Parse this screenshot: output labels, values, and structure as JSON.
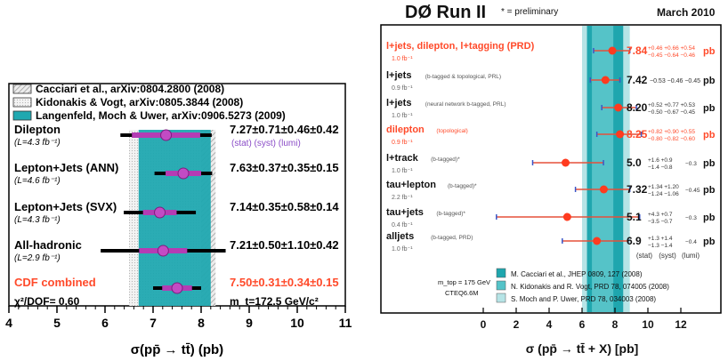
{
  "chart_data": [
    {
      "type": "scatter",
      "xlabel": "σ(pp̄ → tt̄) (pb)",
      "xlim": [
        4,
        11
      ],
      "x_ticks": [
        "4",
        "5",
        "6",
        "7",
        "8",
        "9",
        "10",
        "11"
      ],
      "legend": [
        {
          "label": "Cacciari et al., arXiv:0804.2800 (2008)",
          "color": "#c8c8c8",
          "style": "hatched"
        },
        {
          "label": "Kidonakis & Vogt, arXiv:0805.3844 (2008)",
          "color": "#e6e6e6",
          "style": "dotted"
        },
        {
          "label": "Langenfeld, Moch & Uwer, arXiv:0906.5273 (2009)",
          "color": "#20a8b0",
          "style": "solid"
        }
      ],
      "theory_bands": [
        {
          "name": "Cacciari et al.",
          "lo": 6.5,
          "hi": 8.3
        },
        {
          "name": "Kidonakis & Vogt",
          "lo": 6.5,
          "hi": 8.0
        },
        {
          "name": "Langenfeld, Moch & Uwer",
          "lo": 6.7,
          "hi": 8.2
        }
      ],
      "points": [
        {
          "name": "Dilepton",
          "lumi": "(L=4.3 fb⁻¹)",
          "value": 7.27,
          "stat_err": 0.71,
          "tot_err": 0.95,
          "result": "7.27±0.71±0.46±0.42",
          "extra": "(stat) (syst) (lumi)",
          "highlight": false
        },
        {
          "name": "Lepton+Jets (ANN)",
          "lumi": "(L=4.6 fb⁻¹)",
          "value": 7.63,
          "stat_err": 0.37,
          "tot_err": 0.6,
          "result": "7.63±0.37±0.35±0.15",
          "extra": "",
          "highlight": false
        },
        {
          "name": "Lepton+Jets (SVX)",
          "lumi": "(L=4.3 fb⁻¹)",
          "value": 7.14,
          "stat_err": 0.35,
          "tot_err": 0.75,
          "result": "7.14±0.35±0.58±0.14",
          "extra": "",
          "highlight": false
        },
        {
          "name": "All-hadronic",
          "lumi": "(L=2.9 fb⁻¹)",
          "value": 7.21,
          "stat_err": 0.5,
          "tot_err": 1.3,
          "result": "7.21±0.50±1.10±0.42",
          "extra": "",
          "highlight": false
        },
        {
          "name": "CDF combined",
          "lumi": "",
          "value": 7.5,
          "stat_err": 0.31,
          "tot_err": 0.5,
          "result": "7.50±0.31±0.34±0.15",
          "extra": "",
          "highlight": true
        }
      ],
      "chi2": "χ²/DOF= 0.60",
      "mass_note": "m_t=172.5 GeV/c²"
    },
    {
      "type": "scatter",
      "title": "DØ Run II",
      "title_note": "* = preliminary",
      "date": "March 2010",
      "xlabel": "σ (pp̄ → tt̄ + X) [pb]",
      "xlim": [
        -2,
        14
      ],
      "x_ticks": [
        "0",
        "2",
        "4",
        "6",
        "8",
        "10",
        "12"
      ],
      "theory_bands": [
        {
          "name": "M. Cacciari et al.",
          "lo": 6.3,
          "hi": 8.5,
          "color": "#1fa6ae"
        },
        {
          "name": "N. Kidonakis and R. Vogt",
          "lo": 6.6,
          "hi": 7.9,
          "color": "#55c3c8"
        },
        {
          "name": "S. Moch and P. Uwer",
          "lo": 6.0,
          "hi": 8.9,
          "color": "#b6e4e6"
        }
      ],
      "legend": [
        {
          "label": "M. Cacciari et al., JHEP 0809, 127 (2008)",
          "color": "#1fa6ae"
        },
        {
          "label": "N. Kidonakis and R. Vogt, PRD 78, 074005 (2008)",
          "color": "#55c3c8"
        },
        {
          "label": "S. Moch and P. Uwer, PRD 78, 034003 (2008)",
          "color": "#b6e4e6"
        }
      ],
      "legend_side": [
        "m_top = 175 GeV",
        "CTEQ6.6M"
      ],
      "error_header": [
        "(stat)",
        "(syst)",
        "(lumi)"
      ],
      "points": [
        {
          "name": "l+jets, dilepton, l+tagging (PRD)",
          "sub": "1.0 fb⁻¹",
          "value": 7.84,
          "lo": 6.7,
          "hi": 8.9,
          "val_text": "7.84",
          "err_up": "+0.46 +0.66 +0.54",
          "err_dn": "−0.45 −0.64 −0.46",
          "highlight": true
        },
        {
          "name": "l+jets",
          "tag": "(b-tagged & topological, PRL)",
          "sub": "0.9 fb⁻¹",
          "value": 7.42,
          "lo": 6.5,
          "hi": 8.3,
          "val_text": "7.42",
          "err_sym": "−0.53 −0.46 −0.45",
          "highlight": false
        },
        {
          "name": "l+jets",
          "tag": "(neural network b-tagged, PRL)",
          "sub": "1.0 fb⁻¹",
          "value": 8.2,
          "lo": 7.2,
          "hi": 9.3,
          "val_text": "8.20",
          "err_up": "+0.52 +0.77 +0.53",
          "err_dn": "−0.50 −0.67 −0.45",
          "highlight": false
        },
        {
          "name": "dilepton",
          "tag": "(topological)",
          "sub": "0.9 fb⁻¹",
          "value": 8.3,
          "lo": 6.9,
          "hi": 9.6,
          "val_text": "8.25",
          "err_up": "+0.82 +0.90 +0.55",
          "err_dn": "−0.80 −0.82 −0.60",
          "highlight": true
        },
        {
          "name": "l+track",
          "tag": "(b-tagged)*",
          "sub": "1.0 fb⁻¹",
          "value": 5.0,
          "lo": 3.0,
          "hi": 7.3,
          "val_text": "5.0",
          "err_up": "+1.6 +0.9",
          "err_dn": "−1.4 −0.8",
          "err_last": "−0.3",
          "highlight": false
        },
        {
          "name": "tau+lepton",
          "tag": "(b-tagged)*",
          "sub": "2.2 fb⁻¹",
          "value": 7.32,
          "lo": 5.6,
          "hi": 8.9,
          "val_text": "7.32",
          "err_up": "+1.34 +1.20",
          "err_dn": "−1.24 −1.06",
          "err_last": "−0.45",
          "highlight": false
        },
        {
          "name": "tau+jets",
          "tag": "(b-tagged)*",
          "sub": "0.4 fb⁻¹",
          "value": 5.1,
          "lo": 0.8,
          "hi": 9.5,
          "val_text": "5.1",
          "err_up": "+4.3 +0.7",
          "err_dn": "−3.5 −0.7",
          "err_last": "−0.3",
          "highlight": false
        },
        {
          "name": "alljets",
          "tag": "(b-tagged, PRD)",
          "sub": "1.0 fb⁻¹",
          "value": 6.9,
          "lo": 4.8,
          "hi": 8.8,
          "val_text": "6.9",
          "err_up": "+1.3 +1.4",
          "err_dn": "−1.3 −1.4",
          "err_last": "−0.4",
          "highlight": false
        }
      ],
      "units": "pb"
    }
  ]
}
